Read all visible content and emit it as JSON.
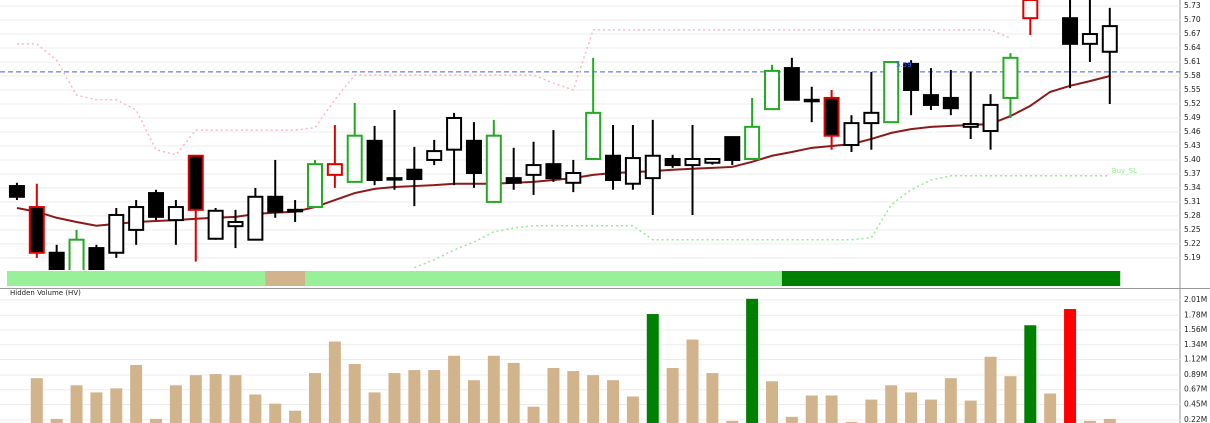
{
  "chart_data": [
    {
      "type": "candlestick",
      "open": [
        5.344,
        5.299,
        5.201,
        5.16,
        5.211,
        5.201,
        5.25,
        5.329,
        5.271,
        5.409,
        5.231,
        5.258,
        5.229,
        5.321,
        5.293,
        5.299,
        5.368,
        5.353,
        5.441,
        5.361,
        5.379,
        5.4,
        5.422,
        5.441,
        5.31,
        5.361,
        5.368,
        5.391,
        5.351,
        5.402,
        5.409,
        5.349,
        5.361,
        5.402,
        5.389,
        5.394,
        5.449,
        5.402,
        5.509,
        5.597,
        5.529,
        5.533,
        5.432,
        5.479,
        5.481,
        5.606,
        5.539,
        5.533,
        5.471,
        5.462,
        5.533,
        5.704,
        null,
        5.704,
        5.649,
        5.632
      ],
      "high": [
        5.351,
        5.349,
        5.218,
        5.25,
        5.218,
        5.297,
        5.314,
        5.336,
        5.314,
        5.409,
        5.297,
        5.293,
        5.34,
        5.4,
        5.314,
        5.4,
        5.475,
        5.522,
        5.473,
        5.507,
        5.428,
        5.443,
        5.501,
        5.481,
        5.486,
        5.426,
        5.439,
        5.464,
        5.4,
        5.619,
        5.475,
        5.475,
        5.486,
        5.411,
        5.475,
        5.404,
        5.449,
        5.533,
        5.604,
        5.619,
        5.557,
        5.55,
        5.496,
        5.589,
        5.61,
        5.614,
        5.597,
        5.593,
        5.589,
        5.541,
        5.629,
        5.76,
        null,
        5.76,
        5.76,
        5.726
      ],
      "low": [
        5.314,
        5.19,
        5.15,
        5.155,
        5.155,
        5.19,
        5.218,
        5.271,
        5.218,
        5.182,
        5.229,
        5.211,
        5.229,
        5.276,
        5.267,
        5.297,
        5.34,
        5.353,
        5.346,
        5.336,
        5.301,
        5.389,
        5.346,
        5.34,
        5.31,
        5.336,
        5.325,
        5.353,
        5.331,
        5.402,
        5.336,
        5.336,
        5.282,
        5.383,
        5.282,
        5.39,
        5.389,
        5.402,
        5.509,
        5.529,
        5.481,
        5.422,
        5.417,
        5.422,
        5.481,
        5.496,
        5.507,
        5.496,
        5.445,
        5.422,
        5.49,
        5.668,
        null,
        5.554,
        5.61,
        5.52
      ],
      "close": [
        5.321,
        5.201,
        5.16,
        5.229,
        5.16,
        5.282,
        5.299,
        5.278,
        5.299,
        5.293,
        5.291,
        5.267,
        5.321,
        5.289,
        5.291,
        5.391,
        5.391,
        5.452,
        5.357,
        5.361,
        5.359,
        5.419,
        5.49,
        5.372,
        5.452,
        5.351,
        5.389,
        5.361,
        5.372,
        5.501,
        5.357,
        5.404,
        5.409,
        5.389,
        5.402,
        5.402,
        5.4,
        5.471,
        5.591,
        5.529,
        5.529,
        5.452,
        5.479,
        5.501,
        5.61,
        5.55,
        5.518,
        5.511,
        5.477,
        5.518,
        5.619,
        5.743,
        null,
        5.649,
        5.67,
        5.687
      ],
      "colors": [
        "#000000",
        "#dd0000",
        "#000000",
        "#22aa22",
        "#000000",
        "#000000",
        "#000000",
        "#000000",
        "#000000",
        "#dd0000",
        "#000000",
        "#000000",
        "#000000",
        "#000000",
        "#000000",
        "#22aa22",
        "#dd0000",
        "#22aa22",
        "#000000",
        "#000000",
        "#000000",
        "#000000",
        "#000000",
        "#000000",
        "#22aa22",
        "#000000",
        "#000000",
        "#000000",
        "#000000",
        "#22aa22",
        "#000000",
        "#000000",
        "#000000",
        "#000000",
        "#000000",
        "#000000",
        "#000000",
        "#22aa22",
        "#22aa22",
        "#000000",
        "#000000",
        "#dd0000",
        "#000000",
        "#000000",
        "#22aa22",
        "#000000",
        "#000000",
        "#000000",
        "#000000",
        "#000000",
        "#22aa22",
        "#dd0000",
        null,
        "#000000",
        "#000000",
        "#000000"
      ],
      "lines": [
        {
          "color": "#8b1a1a",
          "dashed": false,
          "values": [
            5.297,
            5.289,
            5.276,
            5.267,
            5.259,
            5.263,
            5.267,
            5.269,
            5.271,
            5.274,
            5.276,
            5.278,
            5.284,
            5.287,
            5.289,
            5.299,
            5.314,
            5.329,
            5.338,
            5.342,
            5.344,
            5.346,
            5.349,
            5.349,
            5.349,
            5.351,
            5.353,
            5.357,
            5.361,
            5.368,
            5.372,
            5.374,
            5.376,
            5.379,
            5.381,
            5.383,
            5.385,
            5.396,
            5.409,
            5.417,
            5.426,
            5.43,
            5.434,
            5.445,
            5.458,
            5.466,
            5.471,
            5.473,
            5.475,
            5.477,
            5.494,
            5.516,
            5.546,
            5.559,
            5.569,
            5.58
          ]
        },
        {
          "color": "#ffb6c1",
          "dashed": true,
          "values": [
            5.649,
            5.649,
            5.614,
            5.539,
            5.529,
            5.529,
            5.507,
            5.422,
            5.411,
            5.464,
            5.464,
            5.464,
            5.464,
            5.464,
            5.464,
            5.469,
            5.529,
            5.582,
            5.582,
            5.582,
            5.582,
            5.582,
            5.582,
            5.582,
            5.582,
            5.582,
            5.582,
            5.565,
            5.55,
            5.679,
            5.679,
            5.679,
            5.679,
            5.679,
            5.679,
            5.679,
            5.679,
            5.679,
            5.679,
            5.679,
            5.679,
            5.679,
            5.679,
            5.679,
            5.679,
            5.679,
            5.679,
            5.679,
            5.679,
            5.679,
            5.661,
            null,
            null,
            null,
            null,
            null
          ]
        },
        {
          "name": "Buy_SL",
          "color": "#90ee90",
          "dashed": true,
          "values": [
            null,
            null,
            null,
            null,
            null,
            null,
            null,
            null,
            null,
            null,
            null,
            null,
            null,
            null,
            null,
            null,
            null,
            null,
            null,
            null,
            5.169,
            5.186,
            5.207,
            5.224,
            5.246,
            5.254,
            5.259,
            5.259,
            5.259,
            5.259,
            5.259,
            5.259,
            5.229,
            5.229,
            5.229,
            5.229,
            5.229,
            5.229,
            5.229,
            5.229,
            5.229,
            5.229,
            5.229,
            5.233,
            5.304,
            5.336,
            5.357,
            5.366,
            5.366,
            5.366,
            5.366,
            5.366,
            5.366,
            5.366,
            5.366,
            5.366
          ]
        }
      ],
      "ref_line": 5.589,
      "ref_color": "#4060ff",
      "annotation": "5.59",
      "band_colors": [
        "#98f098",
        "#98f098",
        "#98f098",
        "#98f098",
        "#98f098",
        "#98f098",
        "#98f098",
        "#98f098",
        "#98f098",
        "#98f098",
        "#98f098",
        "#98f098",
        "#98f098",
        "#d2b48c",
        "#d2b48c",
        "#98f098",
        "#98f098",
        "#98f098",
        "#98f098",
        "#98f098",
        "#98f098",
        "#98f098",
        "#98f098",
        "#98f098",
        "#98f098",
        "#98f098",
        "#98f098",
        "#98f098",
        "#98f098",
        "#98f098",
        "#98f098",
        "#98f098",
        "#98f098",
        "#98f098",
        "#98f098",
        "#98f098",
        "#98f098",
        "#98f098",
        "#98f098",
        "#008000",
        "#008000",
        "#008000",
        "#008000",
        "#008000",
        "#008000",
        "#008000",
        "#008000",
        "#008000",
        "#008000",
        "#008000",
        "#008000",
        "#008000",
        "#008000",
        "#008000",
        "#008000",
        "#008000"
      ],
      "ylim": [
        5.164,
        5.743
      ],
      "yticks": [
        5.73,
        {
          "value": 5.7,
          "label": "5.70"
        },
        5.67,
        5.64,
        5.61,
        5.58,
        5.55,
        5.52,
        5.49,
        5.46,
        5.43,
        {
          "value": 5.4,
          "label": "5.40"
        },
        5.37,
        5.34,
        5.31,
        5.28,
        5.25,
        5.22,
        5.19
      ],
      "grid": true
    },
    {
      "type": "bar",
      "title": "Hidden Volume (HV)",
      "values": [
        null,
        0.842,
        0.235,
        0.736,
        0.63,
        0.69,
        1.039,
        0.235,
        0.736,
        0.887,
        0.903,
        0.887,
        0.599,
        0.463,
        0.357,
        0.918,
        1.388,
        1.054,
        0.63,
        0.918,
        0.963,
        0.963,
        1.176,
        0.812,
        1.176,
        1.07,
        0.417,
        0.994,
        0.948,
        0.887,
        0.812,
        0.569,
        1.798,
        0.994,
        1.418,
        0.918,
        0.205,
        2.025,
        0.796,
        0.266,
        0.584,
        0.584,
        0.19,
        0.523,
        0.736,
        0.63,
        0.523,
        0.842,
        0.508,
        1.161,
        0.872,
        1.631,
        0.614,
        1.873,
        0.205,
        0.235
      ],
      "colors": [
        null,
        "#d2b48c",
        "#d2b48c",
        "#d2b48c",
        "#d2b48c",
        "#d2b48c",
        "#d2b48c",
        "#d2b48c",
        "#d2b48c",
        "#d2b48c",
        "#d2b48c",
        "#d2b48c",
        "#d2b48c",
        "#d2b48c",
        "#d2b48c",
        "#d2b48c",
        "#d2b48c",
        "#d2b48c",
        "#d2b48c",
        "#d2b48c",
        "#d2b48c",
        "#d2b48c",
        "#d2b48c",
        "#d2b48c",
        "#d2b48c",
        "#d2b48c",
        "#d2b48c",
        "#d2b48c",
        "#d2b48c",
        "#d2b48c",
        "#d2b48c",
        "#d2b48c",
        "#008000",
        "#d2b48c",
        "#d2b48c",
        "#d2b48c",
        "#d2b48c",
        "#008000",
        "#d2b48c",
        "#d2b48c",
        "#d2b48c",
        "#d2b48c",
        "#d2b48c",
        "#d2b48c",
        "#d2b48c",
        "#d2b48c",
        "#d2b48c",
        "#d2b48c",
        "#d2b48c",
        "#d2b48c",
        "#d2b48c",
        "#008000",
        "#d2b48c",
        "#ff0000",
        "#d2b48c",
        "#d2b48c"
      ],
      "ylim": [
        0.174,
        2.067
      ],
      "yticks": [
        {
          "value": 2.01,
          "label": "2.01M"
        },
        {
          "value": 1.78,
          "label": "1.78M"
        },
        {
          "value": 1.56,
          "label": "1.56M"
        },
        {
          "value": 1.34,
          "label": "1.34M"
        },
        {
          "value": 1.12,
          "label": "1.12M"
        },
        {
          "value": 0.89,
          "label": "0.89M"
        },
        {
          "value": 0.67,
          "label": "0.67M"
        },
        {
          "value": 0.45,
          "label": "0.45M"
        },
        {
          "value": 0.22,
          "label": "0.22M"
        }
      ],
      "grid": true
    }
  ]
}
